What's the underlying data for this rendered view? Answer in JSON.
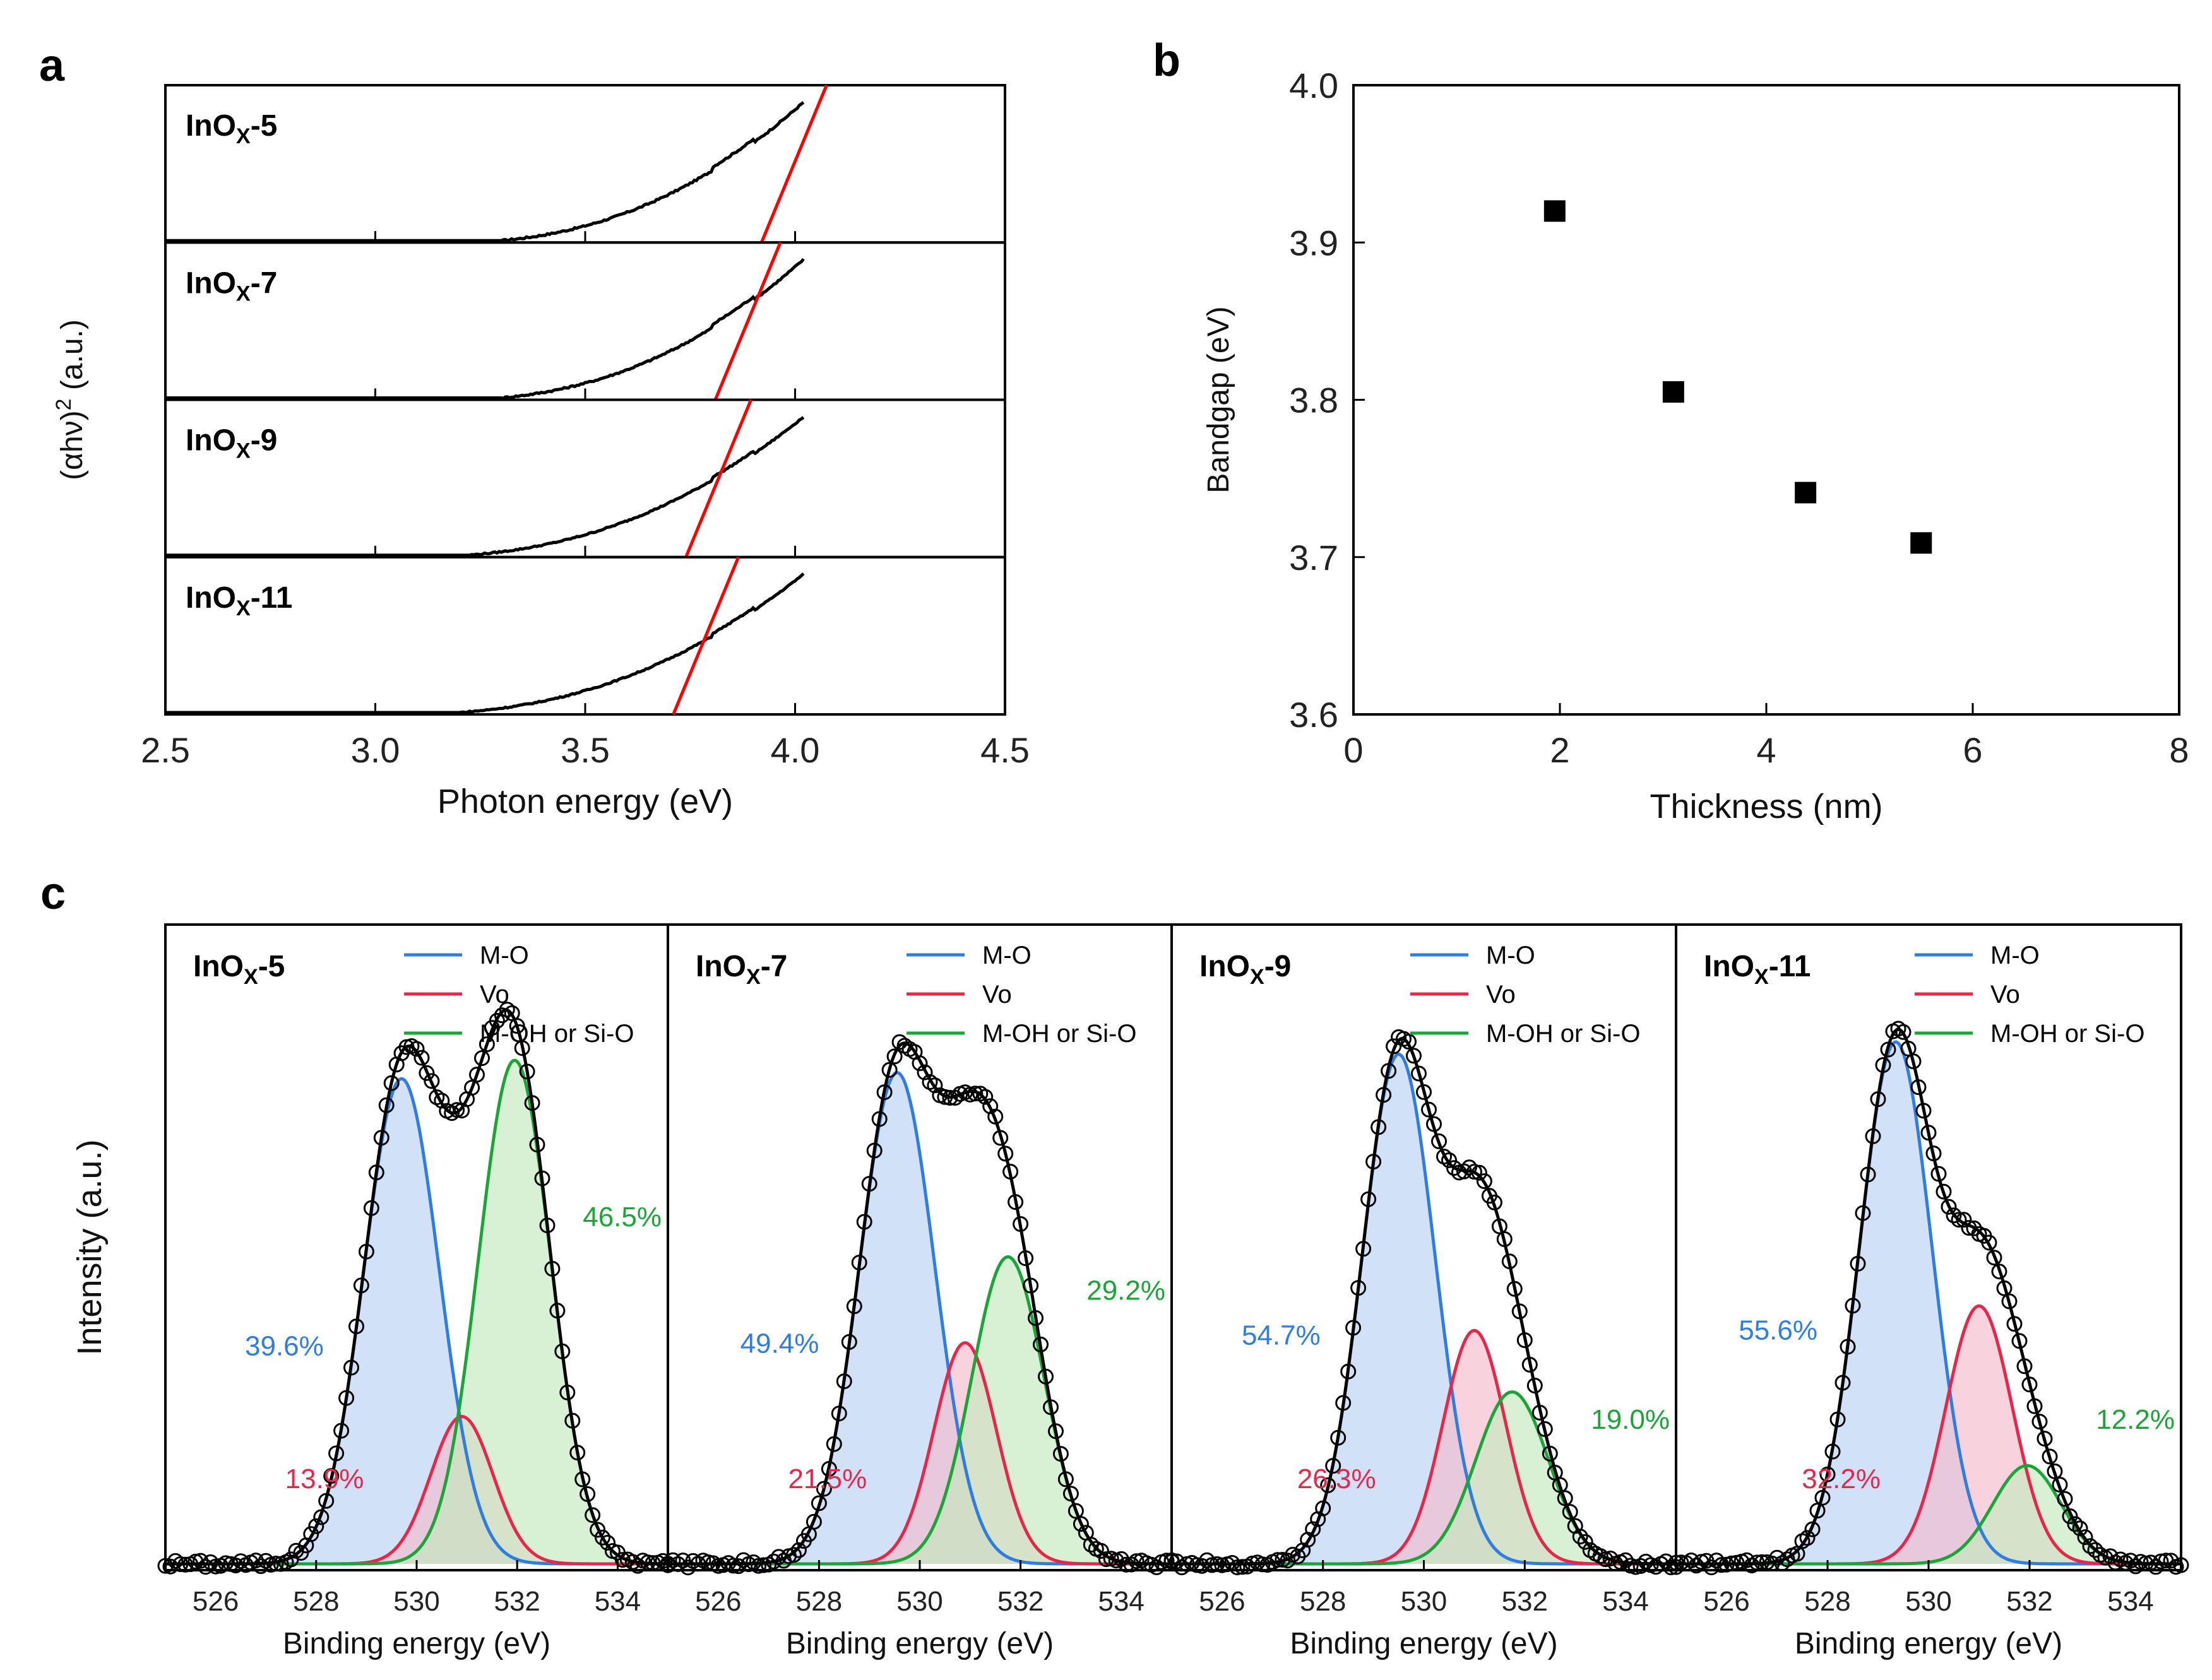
{
  "panel_labels": [
    "a",
    "b",
    "c"
  ],
  "colors": {
    "mo": "#2f7de0",
    "vo": "#e8264a",
    "ohsio": "#1aa637",
    "tangent": "#ff0000",
    "mo_fill": "#b8d2f5",
    "vo_fill": "#f5bccb",
    "ohsio_fill": "#c3e9bf",
    "data_line": "#000000"
  },
  "chart_data": [
    {
      "id": "a",
      "type": "line",
      "title": "",
      "xlabel": "Photon energy (eV)",
      "ylabel_parts": {
        "pre": "(αhν)",
        "sup": "2",
        "post": " (a.u.)"
      },
      "xlim": [
        2.5,
        4.5
      ],
      "xticks": [
        "2.5",
        "3.0",
        "3.5",
        "4.0",
        "4.5"
      ],
      "tick_values": [
        2.5,
        3.0,
        3.5,
        4.0,
        4.5
      ],
      "series": [
        {
          "name": "InOX-5",
          "label_main": "InO",
          "label_sub": "X",
          "label_suffix": "-5",
          "onset": 3.3,
          "bandgap": 3.92
        },
        {
          "name": "InOX-7",
          "label_main": "InO",
          "label_sub": "X",
          "label_suffix": "-7",
          "onset": 3.3,
          "bandgap": 3.81
        },
        {
          "name": "InOX-9",
          "label_main": "InO",
          "label_sub": "X",
          "label_suffix": "-9",
          "onset": 3.22,
          "bandgap": 3.74
        },
        {
          "name": "InOX-11",
          "label_main": "InO",
          "label_sub": "X",
          "label_suffix": "-11",
          "onset": 3.2,
          "bandgap": 3.71
        }
      ]
    },
    {
      "id": "b",
      "type": "scatter",
      "title": "",
      "xlabel": "Thickness (nm)",
      "ylabel": "Bandgap (eV)",
      "xlim": [
        0,
        8
      ],
      "ylim": [
        3.6,
        4.0
      ],
      "xticks": [
        "0",
        "2",
        "4",
        "6",
        "8"
      ],
      "yticks": [
        "3.6",
        "3.7",
        "3.8",
        "3.9",
        "4.0"
      ],
      "x": [
        1.95,
        3.1,
        4.38,
        5.5
      ],
      "y": [
        3.92,
        3.805,
        3.741,
        3.709
      ]
    },
    {
      "id": "c",
      "type": "line",
      "ylabel": "Intensity (a.u.)",
      "xlabel": "Binding energy (eV)",
      "xlim": [
        525,
        535
      ],
      "xticks": [
        "526",
        "528",
        "530",
        "532",
        "534"
      ],
      "tick_values": [
        526,
        528,
        530,
        532,
        534
      ],
      "legend": [
        "M-O",
        "Vo",
        "M-OH or Si-O"
      ],
      "legend_position": "top-right",
      "subplots": [
        {
          "label_main": "InO",
          "label_sub": "X",
          "label_suffix": "-5",
          "components": {
            "mo": {
              "center": 529.7,
              "height": 0.79,
              "sigma": 0.75
            },
            "vo": {
              "center": 530.9,
              "height": 0.24,
              "sigma": 0.62
            },
            "ohsio": {
              "center": 531.95,
              "height": 0.82,
              "sigma": 0.72
            }
          },
          "percent": {
            "mo": "39.6%",
            "vo": "13.9%",
            "ohsio": "46.5%"
          }
        },
        {
          "label_main": "InO",
          "label_sub": "X",
          "label_suffix": "-7",
          "components": {
            "mo": {
              "center": 529.55,
              "height": 0.8,
              "sigma": 0.75
            },
            "vo": {
              "center": 530.9,
              "height": 0.36,
              "sigma": 0.62
            },
            "ohsio": {
              "center": 531.75,
              "height": 0.5,
              "sigma": 0.72
            }
          },
          "percent": {
            "mo": "49.4%",
            "vo": "21.5%",
            "ohsio": "29.2%"
          }
        },
        {
          "label_main": "InO",
          "label_sub": "X",
          "label_suffix": "-9",
          "components": {
            "mo": {
              "center": 529.5,
              "height": 0.83,
              "sigma": 0.72
            },
            "vo": {
              "center": 531.0,
              "height": 0.38,
              "sigma": 0.62
            },
            "ohsio": {
              "center": 531.75,
              "height": 0.28,
              "sigma": 0.72
            }
          },
          "percent": {
            "mo": "54.7%",
            "vo": "26.3%",
            "ohsio": "19.0%"
          }
        },
        {
          "label_main": "InO",
          "label_sub": "X",
          "label_suffix": "-11",
          "components": {
            "mo": {
              "center": 529.35,
              "height": 0.85,
              "sigma": 0.72
            },
            "vo": {
              "center": 531.0,
              "height": 0.42,
              "sigma": 0.66
            },
            "ohsio": {
              "center": 531.95,
              "height": 0.16,
              "sigma": 0.68
            }
          },
          "percent": {
            "mo": "55.6%",
            "vo": "32.2%",
            "ohsio": "12.2%"
          }
        }
      ]
    }
  ]
}
